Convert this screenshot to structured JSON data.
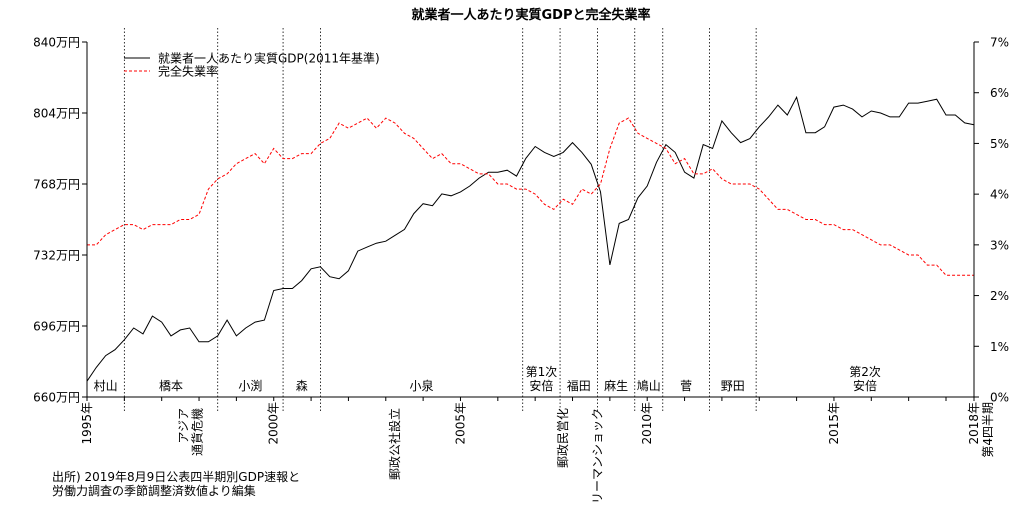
{
  "chart_data": {
    "type": "line",
    "title": "就業者一人あたり実質GDPと完全失業率",
    "xlabel": "",
    "ylabel": "",
    "x_range": [
      "1995-01",
      "2018-10"
    ],
    "y_left": {
      "range": [
        660,
        840
      ],
      "ticks": [
        "660万円",
        "696万円",
        "732万円",
        "768万円",
        "804万円",
        "840万円"
      ]
    },
    "y_right": {
      "range": [
        0,
        7
      ],
      "ticks": [
        "0%",
        "1%",
        "2%",
        "3%",
        "4%",
        "5%",
        "6%",
        "7%"
      ]
    },
    "x_ticks": [
      "1995年",
      "2000年",
      "2005年",
      "2010年",
      "2015年",
      "2018年\n第4四半期"
    ],
    "legend": {
      "placement": "top-left",
      "entries": [
        "就業者一人あたり実質GDP(2011年基準)",
        "完全失業率"
      ]
    },
    "series": [
      {
        "name": "就業者一人あたり実質GDP(2011年基準)",
        "axis": "left",
        "color": "#000000",
        "dash": "solid",
        "points": [
          [
            "1995-01",
            668
          ],
          [
            "1995-04",
            675
          ],
          [
            "1995-07",
            681
          ],
          [
            "1995-10",
            684
          ],
          [
            "1996-01",
            689
          ],
          [
            "1996-04",
            695
          ],
          [
            "1996-07",
            692
          ],
          [
            "1996-10",
            701
          ],
          [
            "1997-01",
            698
          ],
          [
            "1997-04",
            691
          ],
          [
            "1997-07",
            694
          ],
          [
            "1997-10",
            695
          ],
          [
            "1998-01",
            688
          ],
          [
            "1998-04",
            688
          ],
          [
            "1998-07",
            691
          ],
          [
            "1998-10",
            699
          ],
          [
            "1999-01",
            691
          ],
          [
            "1999-04",
            695
          ],
          [
            "1999-07",
            698
          ],
          [
            "1999-10",
            699
          ],
          [
            "2000-01",
            714
          ],
          [
            "2000-04",
            715
          ],
          [
            "2000-07",
            715
          ],
          [
            "2000-10",
            719
          ],
          [
            "2001-01",
            725
          ],
          [
            "2001-04",
            726
          ],
          [
            "2001-07",
            721
          ],
          [
            "2001-10",
            720
          ],
          [
            "2002-01",
            724
          ],
          [
            "2002-04",
            734
          ],
          [
            "2002-07",
            736
          ],
          [
            "2002-10",
            738
          ],
          [
            "2003-01",
            739
          ],
          [
            "2003-04",
            742
          ],
          [
            "2003-07",
            745
          ],
          [
            "2003-10",
            753
          ],
          [
            "2004-01",
            758
          ],
          [
            "2004-04",
            757
          ],
          [
            "2004-07",
            763
          ],
          [
            "2004-10",
            762
          ],
          [
            "2005-01",
            764
          ],
          [
            "2005-04",
            767
          ],
          [
            "2005-07",
            771
          ],
          [
            "2005-10",
            774
          ],
          [
            "2006-01",
            774
          ],
          [
            "2006-04",
            775
          ],
          [
            "2006-07",
            772
          ],
          [
            "2006-10",
            781
          ],
          [
            "2007-01",
            787
          ],
          [
            "2007-04",
            784
          ],
          [
            "2007-07",
            782
          ],
          [
            "2007-10",
            784
          ],
          [
            "2008-01",
            789
          ],
          [
            "2008-04",
            784
          ],
          [
            "2008-07",
            778
          ],
          [
            "2008-10",
            764
          ],
          [
            "2009-01",
            727
          ],
          [
            "2009-04",
            748
          ],
          [
            "2009-07",
            750
          ],
          [
            "2009-10",
            761
          ],
          [
            "2010-01",
            767
          ],
          [
            "2010-04",
            779
          ],
          [
            "2010-07",
            788
          ],
          [
            "2010-10",
            784
          ],
          [
            "2011-01",
            774
          ],
          [
            "2011-04",
            771
          ],
          [
            "2011-07",
            788
          ],
          [
            "2011-10",
            786
          ],
          [
            "2012-01",
            800
          ],
          [
            "2012-04",
            794
          ],
          [
            "2012-07",
            789
          ],
          [
            "2012-10",
            791
          ],
          [
            "2013-01",
            797
          ],
          [
            "2013-04",
            802
          ],
          [
            "2013-07",
            808
          ],
          [
            "2013-10",
            803
          ],
          [
            "2014-01",
            812
          ],
          [
            "2014-04",
            794
          ],
          [
            "2014-07",
            794
          ],
          [
            "2014-10",
            797
          ],
          [
            "2015-01",
            807
          ],
          [
            "2015-04",
            808
          ],
          [
            "2015-07",
            806
          ],
          [
            "2015-10",
            802
          ],
          [
            "2016-01",
            805
          ],
          [
            "2016-04",
            804
          ],
          [
            "2016-07",
            802
          ],
          [
            "2016-10",
            802
          ],
          [
            "2017-01",
            809
          ],
          [
            "2017-04",
            809
          ],
          [
            "2017-07",
            810
          ],
          [
            "2017-10",
            811
          ],
          [
            "2018-01",
            803
          ],
          [
            "2018-04",
            803
          ],
          [
            "2018-07",
            799
          ],
          [
            "2018-10",
            798
          ]
        ]
      },
      {
        "name": "完全失業率",
        "axis": "right",
        "color": "#ff0000",
        "dash": "dashed",
        "points": [
          [
            "1995-01",
            3.0
          ],
          [
            "1995-04",
            3.0
          ],
          [
            "1995-07",
            3.2
          ],
          [
            "1995-10",
            3.3
          ],
          [
            "1996-01",
            3.4
          ],
          [
            "1996-04",
            3.4
          ],
          [
            "1996-07",
            3.3
          ],
          [
            "1996-10",
            3.4
          ],
          [
            "1997-01",
            3.4
          ],
          [
            "1997-04",
            3.4
          ],
          [
            "1997-07",
            3.5
          ],
          [
            "1997-10",
            3.5
          ],
          [
            "1998-01",
            3.6
          ],
          [
            "1998-04",
            4.1
          ],
          [
            "1998-07",
            4.3
          ],
          [
            "1998-10",
            4.4
          ],
          [
            "1999-01",
            4.6
          ],
          [
            "1999-04",
            4.7
          ],
          [
            "1999-07",
            4.8
          ],
          [
            "1999-10",
            4.6
          ],
          [
            "2000-01",
            4.9
          ],
          [
            "2000-04",
            4.7
          ],
          [
            "2000-07",
            4.7
          ],
          [
            "2000-10",
            4.8
          ],
          [
            "2001-01",
            4.8
          ],
          [
            "2001-04",
            5.0
          ],
          [
            "2001-07",
            5.1
          ],
          [
            "2001-10",
            5.4
          ],
          [
            "2002-01",
            5.3
          ],
          [
            "2002-04",
            5.4
          ],
          [
            "2002-07",
            5.5
          ],
          [
            "2002-10",
            5.3
          ],
          [
            "2003-01",
            5.5
          ],
          [
            "2003-04",
            5.4
          ],
          [
            "2003-07",
            5.2
          ],
          [
            "2003-10",
            5.1
          ],
          [
            "2004-01",
            4.9
          ],
          [
            "2004-04",
            4.7
          ],
          [
            "2004-07",
            4.8
          ],
          [
            "2004-10",
            4.6
          ],
          [
            "2005-01",
            4.6
          ],
          [
            "2005-04",
            4.5
          ],
          [
            "2005-07",
            4.4
          ],
          [
            "2005-10",
            4.4
          ],
          [
            "2006-01",
            4.2
          ],
          [
            "2006-04",
            4.2
          ],
          [
            "2006-07",
            4.1
          ],
          [
            "2006-10",
            4.1
          ],
          [
            "2007-01",
            4.0
          ],
          [
            "2007-04",
            3.8
          ],
          [
            "2007-07",
            3.7
          ],
          [
            "2007-10",
            3.9
          ],
          [
            "2008-01",
            3.8
          ],
          [
            "2008-04",
            4.1
          ],
          [
            "2008-07",
            4.0
          ],
          [
            "2008-10",
            4.2
          ],
          [
            "2009-01",
            4.9
          ],
          [
            "2009-04",
            5.4
          ],
          [
            "2009-07",
            5.5
          ],
          [
            "2009-10",
            5.2
          ],
          [
            "2010-01",
            5.1
          ],
          [
            "2010-04",
            5.0
          ],
          [
            "2010-07",
            4.9
          ],
          [
            "2010-10",
            4.6
          ],
          [
            "2011-01",
            4.7
          ],
          [
            "2011-04",
            4.4
          ],
          [
            "2011-07",
            4.4
          ],
          [
            "2011-10",
            4.5
          ],
          [
            "2012-01",
            4.3
          ],
          [
            "2012-04",
            4.2
          ],
          [
            "2012-07",
            4.2
          ],
          [
            "2012-10",
            4.2
          ],
          [
            "2013-01",
            4.1
          ],
          [
            "2013-04",
            3.9
          ],
          [
            "2013-07",
            3.7
          ],
          [
            "2013-10",
            3.7
          ],
          [
            "2014-01",
            3.6
          ],
          [
            "2014-04",
            3.5
          ],
          [
            "2014-07",
            3.5
          ],
          [
            "2014-10",
            3.4
          ],
          [
            "2015-01",
            3.4
          ],
          [
            "2015-04",
            3.3
          ],
          [
            "2015-07",
            3.3
          ],
          [
            "2015-10",
            3.2
          ],
          [
            "2016-01",
            3.1
          ],
          [
            "2016-04",
            3.0
          ],
          [
            "2016-07",
            3.0
          ],
          [
            "2016-10",
            2.9
          ],
          [
            "2017-01",
            2.8
          ],
          [
            "2017-04",
            2.8
          ],
          [
            "2017-07",
            2.6
          ],
          [
            "2017-10",
            2.6
          ],
          [
            "2018-01",
            2.4
          ],
          [
            "2018-04",
            2.4
          ],
          [
            "2018-07",
            2.4
          ],
          [
            "2018-10",
            2.4
          ]
        ]
      }
    ],
    "periods": [
      {
        "start": "1995-01",
        "end": "1996-01",
        "label": "村山"
      },
      {
        "start": "1996-01",
        "end": "1998-07",
        "label": "橋本"
      },
      {
        "start": "1998-07",
        "end": "2000-04",
        "label": "小渕"
      },
      {
        "start": "2000-04",
        "end": "2001-04",
        "label": "森"
      },
      {
        "start": "2001-04",
        "end": "2006-09",
        "label": "小泉"
      },
      {
        "start": "2006-09",
        "end": "2007-09",
        "label": "第1次\n安倍"
      },
      {
        "start": "2007-09",
        "end": "2008-09",
        "label": "福田"
      },
      {
        "start": "2008-09",
        "end": "2009-09",
        "label": "麻生"
      },
      {
        "start": "2009-09",
        "end": "2010-06",
        "label": "鳩山"
      },
      {
        "start": "2010-06",
        "end": "2011-09",
        "label": "菅"
      },
      {
        "start": "2011-09",
        "end": "2012-12",
        "label": "野田"
      },
      {
        "start": "2012-12",
        "end": "2018-10",
        "label": "第2次\n安倍"
      }
    ],
    "events": [
      {
        "date": "1997-08",
        "label": "アジア\n通貨危機"
      },
      {
        "date": "2003-04",
        "label": "郵政公社設立"
      },
      {
        "date": "2007-10",
        "label": "郵政民営化"
      },
      {
        "date": "2008-09",
        "label": "リーマンショック"
      }
    ],
    "grid": false
  },
  "note": {
    "line1": "出所) 2019年8月9日公表四半期別GDP速報と",
    "line2": "労働力調査の季節調整済数値より編集"
  }
}
